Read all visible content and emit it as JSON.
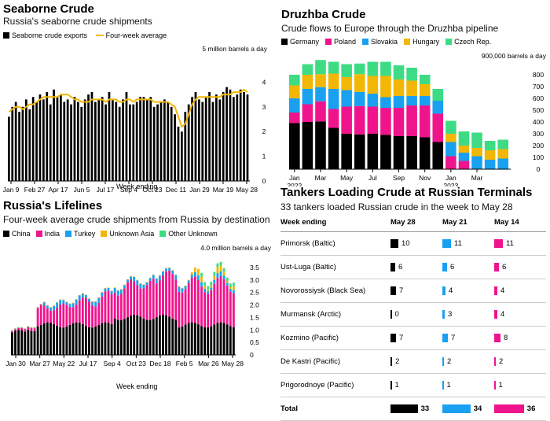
{
  "seaborne": {
    "title": "Seaborne Crude",
    "subtitle": "Russia's seaborne crude shipments",
    "legend": [
      {
        "label": "Seaborne crude exports",
        "color": "#000000"
      },
      {
        "label": "Four-week average",
        "color": "#f2b705"
      }
    ],
    "unit_label": "5 million barrels a day",
    "xlabel": "Week ending"
  },
  "druzhba": {
    "title": "Druzhba Crude",
    "subtitle": "Crude flows to Europe through the Druzhba pipeline",
    "unit_label": "900,000 barrels a day"
  },
  "lifelines": {
    "title": "Russia's Lifelines",
    "subtitle": "Four-week average crude shipments from Russia by destination",
    "unit_label": "4.0 million barrels a day",
    "xlabel": "Week ending"
  },
  "tankers": {
    "title": "Tankers Loading Crude at Russian Terminals",
    "subtitle": "33 tankers loaded Russian crude in the week to May 28",
    "headers": [
      "Week ending",
      "May 28",
      "May 21",
      "May 14"
    ],
    "colors": [
      "#000000",
      "#1aa0f0",
      "#f0148c"
    ],
    "rows": [
      {
        "name": "Primorsk (Baltic)",
        "v": [
          10,
          11,
          11
        ]
      },
      {
        "name": "Ust-Luga (Baltic)",
        "v": [
          6,
          6,
          6
        ]
      },
      {
        "name": "Novorossiysk (Black Sea)",
        "v": [
          7,
          4,
          4
        ]
      },
      {
        "name": "Murmansk (Arctic)",
        "v": [
          0,
          3,
          4
        ]
      },
      {
        "name": "Kozmino (Pacific)",
        "v": [
          7,
          7,
          8
        ]
      },
      {
        "name": "De Kastri (Pacific)",
        "v": [
          2,
          2,
          2
        ]
      },
      {
        "name": "Prigorodnoye (Pacific)",
        "v": [
          1,
          1,
          1
        ]
      }
    ],
    "total": {
      "name": "Total",
      "v": [
        33,
        34,
        36
      ]
    }
  },
  "chart_data": [
    {
      "type": "bar",
      "title": "Seaborne Crude",
      "ylabel": "million barrels a day",
      "ylim": [
        0,
        5
      ],
      "yticks": [
        "0",
        "1",
        "2",
        "3",
        "4"
      ],
      "xticks": [
        "Jan 9",
        "Feb 27",
        "Apr 17",
        "Jun 5",
        "Jul 17",
        "Sep 4",
        "Oct 23",
        "Dec 11",
        "Jan 29",
        "Mar 19",
        "May 28"
      ],
      "series": [
        {
          "name": "Seaborne crude exports",
          "values": [
            2.6,
            3.0,
            3.2,
            2.8,
            3.0,
            3.3,
            2.9,
            3.4,
            3.2,
            3.5,
            3.3,
            3.6,
            3.1,
            3.7,
            3.4,
            3.5,
            3.2,
            3.3,
            3.1,
            3.4,
            3.2,
            3.0,
            3.3,
            3.5,
            3.6,
            3.2,
            3.3,
            3.4,
            3.1,
            3.6,
            3.3,
            3.2,
            3.0,
            3.3,
            3.6,
            3.1,
            3.1,
            3.2,
            3.4,
            3.4,
            3.3,
            3.4,
            3.0,
            3.1,
            3.2,
            3.3,
            3.2,
            3.0,
            2.7,
            2.2,
            2.0,
            2.8,
            3.1,
            3.4,
            3.6,
            3.3,
            3.2,
            3.4,
            3.6,
            3.2,
            3.5,
            3.3,
            3.6,
            3.8,
            3.7,
            3.4,
            3.5,
            3.7,
            3.6,
            3.5
          ]
        },
        {
          "name": "Four-week average",
          "values": [
            2.8,
            2.9,
            3.0,
            3.0,
            2.9,
            3.0,
            3.1,
            3.1,
            3.2,
            3.3,
            3.4,
            3.4,
            3.4,
            3.4,
            3.4,
            3.5,
            3.5,
            3.5,
            3.4,
            3.3,
            3.3,
            3.2,
            3.2,
            3.2,
            3.3,
            3.3,
            3.3,
            3.3,
            3.2,
            3.3,
            3.3,
            3.3,
            3.2,
            3.2,
            3.3,
            3.3,
            3.2,
            3.3,
            3.3,
            3.3,
            3.3,
            3.3,
            3.2,
            3.2,
            3.2,
            3.2,
            3.2,
            3.1,
            3.0,
            2.6,
            2.2,
            2.3,
            2.7,
            3.1,
            3.3,
            3.4,
            3.4,
            3.4,
            3.4,
            3.4,
            3.4,
            3.4,
            3.5,
            3.5,
            3.5,
            3.6,
            3.6,
            3.6,
            3.7,
            3.6
          ]
        }
      ]
    },
    {
      "type": "bar",
      "title": "Druzhba Crude",
      "ylabel": "thousand barrels a day",
      "ylim": [
        0,
        900
      ],
      "yticks": [
        "0",
        "100",
        "200",
        "300",
        "400",
        "500",
        "600",
        "700",
        "800"
      ],
      "categories": [
        "Jan 2022",
        "Feb",
        "Mar",
        "Apr",
        "May",
        "Jun",
        "Jul",
        "Aug",
        "Sep",
        "Oct",
        "Nov",
        "Dec",
        "Jan 2023",
        "Feb",
        "Mar",
        "Apr",
        "May"
      ],
      "xticks": [
        "Jan\n2022",
        "Mar",
        "May",
        "Jul",
        "Sep",
        "Nov",
        "Jan\n2023",
        "Mar"
      ],
      "series": [
        {
          "name": "Germany",
          "color": "#000000",
          "values": [
            390,
            400,
            405,
            350,
            300,
            295,
            300,
            290,
            280,
            280,
            270,
            230,
            0,
            0,
            0,
            0,
            0
          ]
        },
        {
          "name": "Poland",
          "color": "#f0148c",
          "values": [
            90,
            150,
            170,
            160,
            230,
            240,
            230,
            230,
            240,
            260,
            270,
            240,
            110,
            70,
            0,
            0,
            0
          ]
        },
        {
          "name": "Slovakia",
          "color": "#1aa0f0",
          "values": [
            120,
            130,
            120,
            170,
            140,
            120,
            110,
            90,
            100,
            80,
            80,
            110,
            120,
            70,
            110,
            80,
            90
          ]
        },
        {
          "name": "Hungary",
          "color": "#f2b705",
          "values": [
            110,
            120,
            110,
            130,
            110,
            150,
            150,
            180,
            140,
            130,
            100,
            0,
            70,
            60,
            70,
            80,
            80
          ]
        },
        {
          "name": "Czech Rep.",
          "color": "#3ddc84",
          "values": [
            90,
            90,
            120,
            100,
            110,
            90,
            120,
            120,
            120,
            110,
            80,
            100,
            110,
            120,
            130,
            80,
            80
          ]
        }
      ]
    },
    {
      "type": "bar",
      "title": "Russia's Lifelines",
      "ylabel": "million barrels a day",
      "ylim": [
        0,
        4
      ],
      "yticks": [
        "0",
        "0.5",
        "1.0",
        "1.5",
        "2.0",
        "2.5",
        "3.0",
        "3.5"
      ],
      "xticks": [
        "Jan 30",
        "Mar 27",
        "May 22",
        "Jul 17",
        "Sep 4",
        "Oct 23",
        "Dec 18",
        "Feb 5",
        "Mar 26",
        "May 28"
      ],
      "series": [
        {
          "name": "China",
          "color": "#000000"
        },
        {
          "name": "India",
          "color": "#f0148c"
        },
        {
          "name": "Turkey",
          "color": "#1aa0f0"
        },
        {
          "name": "Unknown Asia",
          "color": "#f2b705"
        },
        {
          "name": "Other Unknown",
          "color": "#3ddc84"
        }
      ]
    }
  ]
}
